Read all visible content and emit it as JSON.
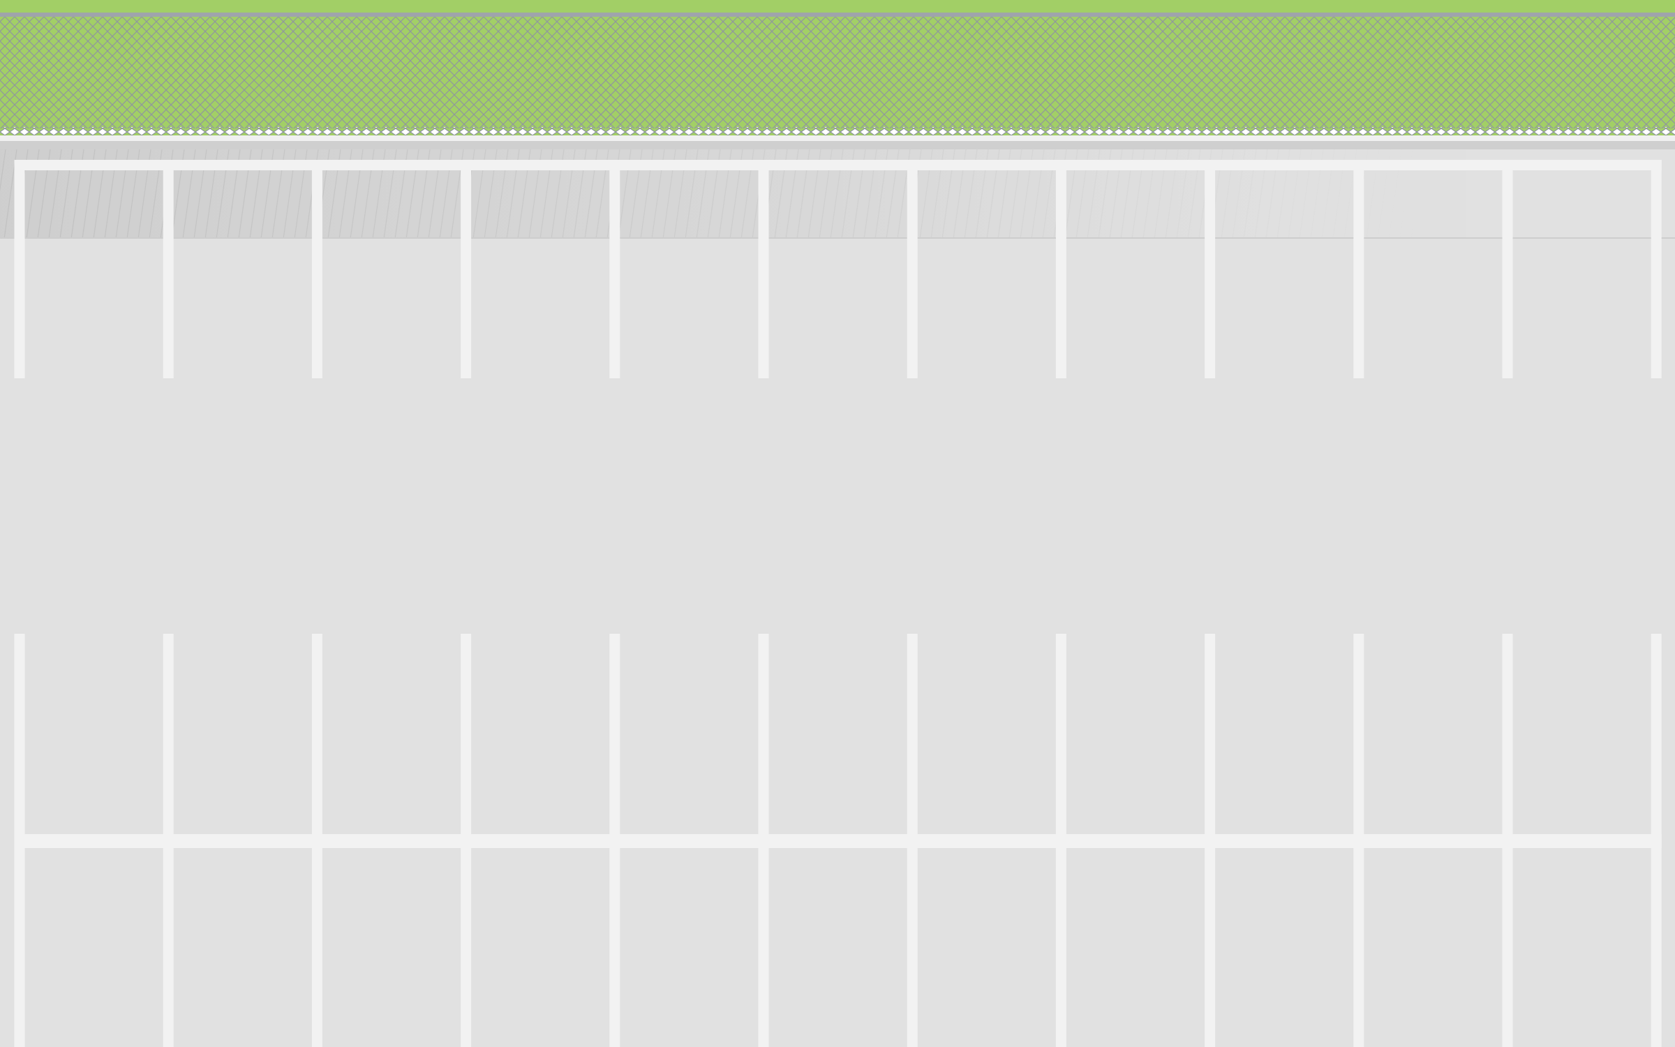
{
  "scene": {
    "type": "top-down parking lot",
    "colors": {
      "grass": "#a2cf66",
      "fence_wire": "#8f95a0",
      "fence_rail": "#9fa4ab",
      "fence_base": "#f0f0f0",
      "curb": "#cfcfcf",
      "asphalt": "#e1e1e1",
      "paint": "#f2f2f2",
      "shadow": "#bdbdbd"
    },
    "icons": [
      "chain-link-fence",
      "parking-space-marking"
    ],
    "parking_rows": [
      {
        "name": "top-row",
        "stalls": 11,
        "orientation": "open-bottom"
      },
      {
        "name": "bottom-row-upper",
        "stalls": 11,
        "orientation": "open-top"
      },
      {
        "name": "bottom-row-lower",
        "stalls": 11,
        "orientation": "open-bottom"
      }
    ]
  }
}
